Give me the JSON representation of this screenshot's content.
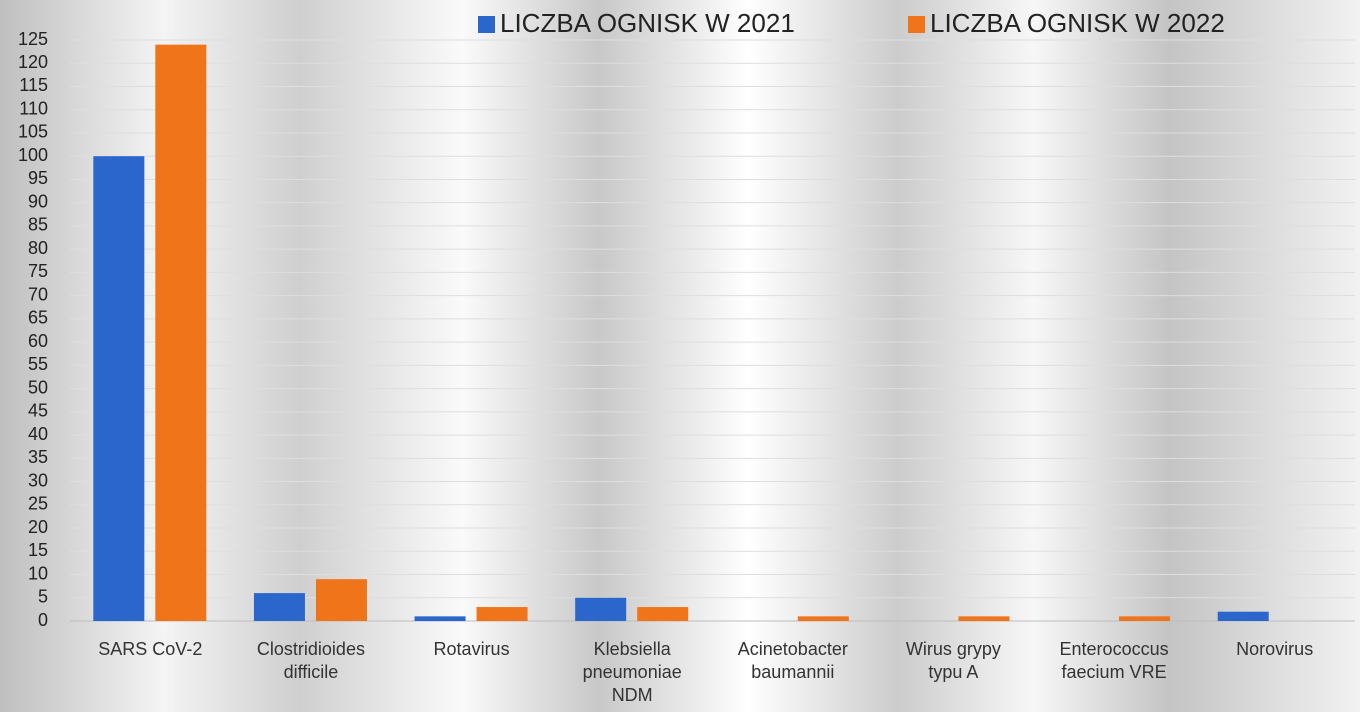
{
  "chart_data": {
    "type": "bar",
    "categories": [
      "SARS CoV-2",
      "Clostridioides difficile",
      "Rotavirus",
      "Klebsiella pneumoniae NDM",
      "Acinetobacter baumannii",
      "Wirus grypy typu A",
      "Enterococcus faecium VRE",
      "Norovirus"
    ],
    "series": [
      {
        "name": "LICZBA OGNISK W 2021",
        "color": "#2a66cc",
        "values": [
          100,
          6,
          1,
          5,
          0,
          0,
          0,
          2
        ]
      },
      {
        "name": "LICZBA OGNISK W 2022",
        "color": "#f0741a",
        "values": [
          124,
          9,
          3,
          3,
          1,
          1,
          1,
          0
        ]
      }
    ],
    "ylim": [
      0,
      125
    ],
    "yticks": [
      0,
      5,
      10,
      15,
      20,
      25,
      30,
      35,
      40,
      45,
      50,
      55,
      60,
      65,
      70,
      75,
      80,
      85,
      90,
      95,
      100,
      105,
      110,
      115,
      120,
      125
    ],
    "grid": true,
    "legend": "top"
  }
}
